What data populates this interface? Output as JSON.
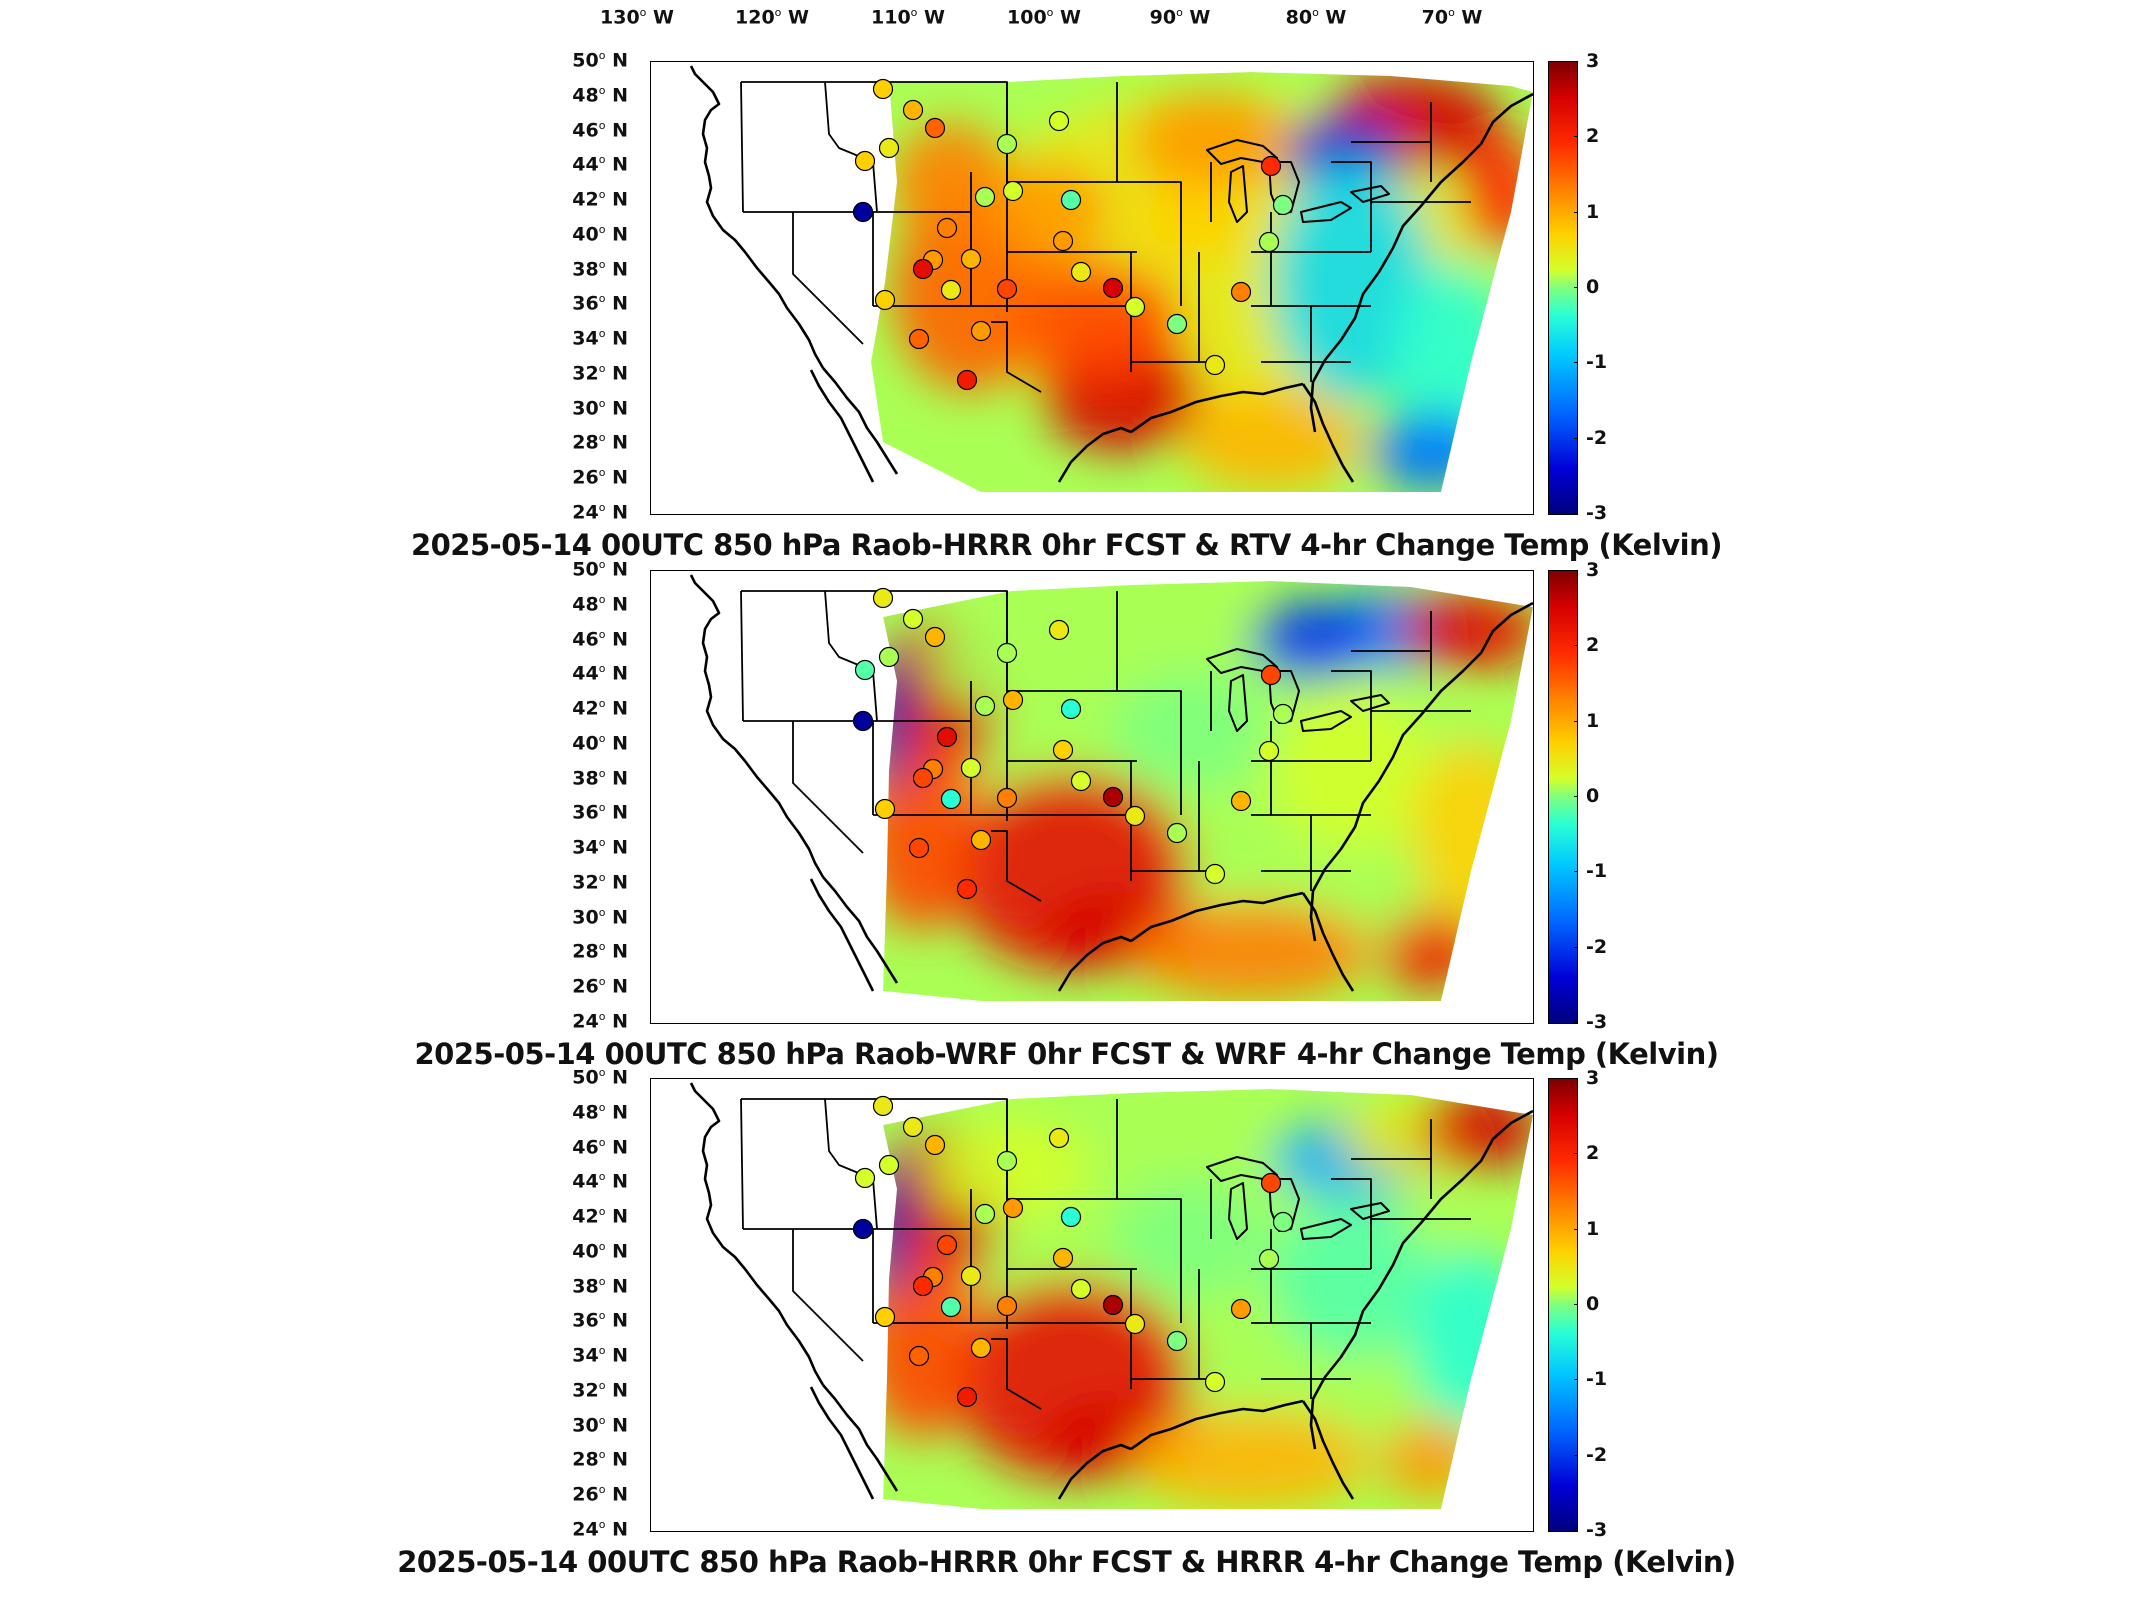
{
  "lon_labels": [
    "130",
    "120",
    "110",
    "100",
    "90",
    "80",
    "70"
  ],
  "lon_suffix": "W",
  "lat_labels": [
    "50",
    "48",
    "46",
    "44",
    "42",
    "40",
    "38",
    "36",
    "34",
    "32",
    "30",
    "28",
    "26",
    "24"
  ],
  "lat_suffix": "N",
  "colorbar_ticks": [
    "3",
    "2",
    "1",
    "0",
    "-1",
    "-2",
    "-3"
  ],
  "colors": {
    "positive": "#d60000",
    "neutral": "#7fff7f",
    "negative": "#0000d6",
    "background": "#ffffff",
    "border": "#000000"
  },
  "panels": [
    {
      "caption": "2025-05-14 00UTC 850 hPa Raob-HRRR 0hr FCST & RTV 4-hr Change Temp (Kelvin)",
      "variant": "rtv",
      "raob_values": [
        0.8,
        1.0,
        1.6,
        0.6,
        0.8,
        -2.8,
        1.4,
        0.2,
        0.4,
        1.2,
        2.4,
        1.0,
        0.6,
        1.8,
        1.2,
        2.2,
        0.8,
        1.6,
        0.2,
        0.4,
        -0.2,
        1.2,
        0.6,
        2.6,
        0.4,
        0.0,
        0.6,
        1.4,
        0.2,
        0.0,
        2.0
      ]
    },
    {
      "caption": "2025-05-14 00UTC 850 hPa Raob-WRF 0hr FCST & WRF 4-hr Change Temp (Kelvin)",
      "variant": "wrf",
      "raob_values": [
        0.6,
        0.4,
        1.0,
        0.2,
        -0.2,
        -2.8,
        2.4,
        0.2,
        1.0,
        1.4,
        1.8,
        0.4,
        -0.4,
        1.4,
        1.0,
        2.0,
        0.8,
        1.8,
        0.2,
        0.6,
        -0.4,
        0.8,
        0.4,
        2.8,
        0.6,
        0.2,
        0.4,
        1.0,
        0.4,
        0.2,
        1.8
      ]
    },
    {
      "caption": "2025-05-14 00UTC 850 hPa Raob-HRRR 0hr FCST & HRRR 4-hr Change Temp (Kelvin)",
      "variant": "hrrr",
      "raob_values": [
        0.6,
        0.6,
        1.0,
        0.4,
        0.4,
        -2.8,
        1.8,
        0.2,
        1.2,
        1.4,
        2.0,
        0.6,
        -0.2,
        1.4,
        1.0,
        2.2,
        0.8,
        1.6,
        0.2,
        0.6,
        -0.4,
        1.0,
        0.4,
        2.8,
        0.6,
        0.0,
        0.4,
        1.2,
        0.2,
        0.0,
        1.8
      ]
    }
  ]
}
